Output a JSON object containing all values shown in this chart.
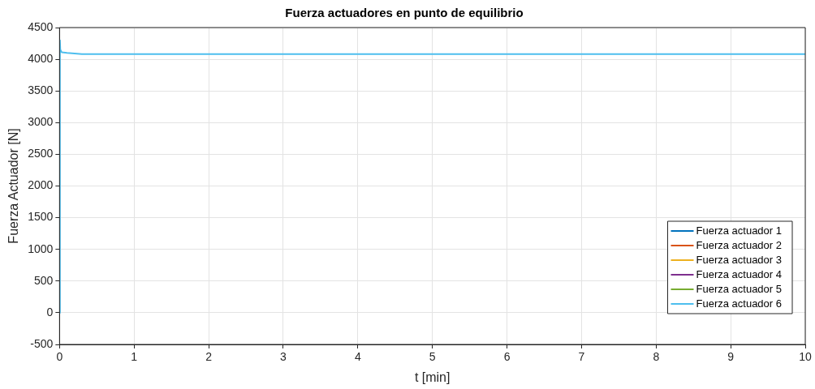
{
  "chart_data": {
    "type": "line",
    "title": "Fuerza actuadores en punto de equilibrio",
    "xlabel": "t [min]",
    "ylabel": "Fuerza Actuador [N]",
    "x": [
      0,
      0.005,
      0.01,
      0.03,
      0.1,
      0.2,
      0.3,
      0.5,
      1,
      2,
      3,
      3.6,
      4,
      5,
      6,
      7,
      7.65,
      8,
      9,
      10
    ],
    "series": [
      {
        "name": "Fuerza actuador 1",
        "color": "#0072bd",
        "values": [
          null,
          null,
          null,
          null,
          null,
          null,
          null,
          null,
          null,
          null,
          null,
          null,
          null,
          null,
          null,
          null,
          null,
          null,
          null,
          null
        ]
      },
      {
        "name": "Fuerza actuador 2",
        "color": "#d95319",
        "values": [
          null,
          null,
          null,
          null,
          null,
          null,
          null,
          null,
          null,
          null,
          null,
          null,
          null,
          null,
          null,
          null,
          null,
          null,
          null,
          null
        ]
      },
      {
        "name": "Fuerza actuador 3",
        "color": "#edb120",
        "values": [
          null,
          null,
          null,
          null,
          null,
          null,
          null,
          null,
          null,
          null,
          null,
          null,
          null,
          null,
          null,
          null,
          null,
          null,
          null,
          null
        ]
      },
      {
        "name": "Fuerza actuador 4",
        "color": "#7e2f8e",
        "values": [
          null,
          null,
          null,
          null,
          null,
          null,
          null,
          null,
          null,
          null,
          null,
          null,
          null,
          null,
          null,
          null,
          null,
          null,
          null,
          null
        ]
      },
      {
        "name": "Fuerza actuador 5",
        "color": "#77ac30",
        "values": [
          null,
          null,
          null,
          null,
          null,
          null,
          null,
          null,
          null,
          null,
          null,
          null,
          null,
          null,
          null,
          null,
          null,
          null,
          null,
          null
        ]
      },
      {
        "name": "Fuerza actuador 6",
        "color": "#4dbeee",
        "values": [
          0,
          4300,
          4150,
          4110,
          4100,
          4090,
          4080,
          4080,
          4080,
          4080,
          4080,
          4080,
          4080,
          4080,
          4080,
          4080,
          4080,
          4080,
          4080,
          4080
        ]
      }
    ],
    "xlim": [
      0,
      10
    ],
    "xticks": [
      0,
      1,
      2,
      3,
      4,
      5,
      6,
      7,
      8,
      9,
      10
    ],
    "ylim": [
      -500,
      4500
    ],
    "yticks": [
      -500,
      0,
      500,
      1000,
      1500,
      2000,
      2500,
      3000,
      3500,
      4000,
      4500
    ],
    "grid": true,
    "legend": "bottom right",
    "marker": "none",
    "line_style": "solid"
  }
}
